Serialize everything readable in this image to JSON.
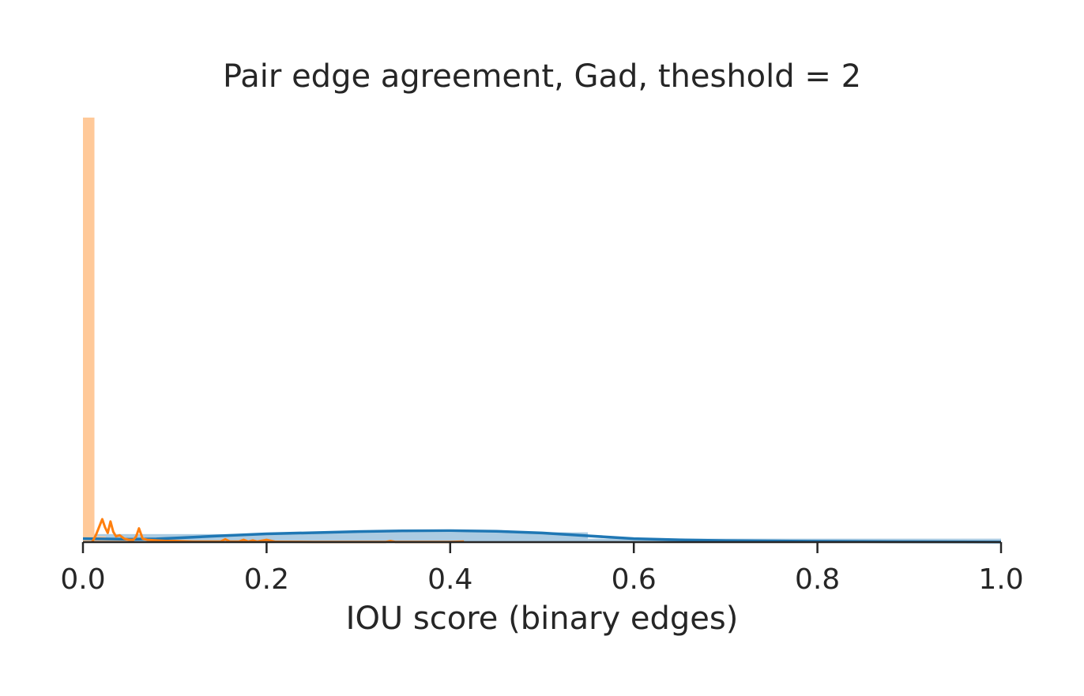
{
  "chart_data": {
    "type": "histogram",
    "title": "Pair edge agreement, Gad, theshold = 2",
    "xlabel": "IOU score (binary edges)",
    "ylabel": "",
    "xlim": [
      0.0,
      1.0
    ],
    "ylim": [
      0,
      37
    ],
    "xticks": [
      "0.0",
      "0.2",
      "0.4",
      "0.6",
      "0.8",
      "1.0"
    ],
    "grid": false,
    "legend": "none",
    "series": [
      {
        "color": "#1f77b4",
        "fill_color": "#a6c8e0",
        "hist_bins": [
          {
            "x0": 0.0,
            "x1": 0.05,
            "density": 0.7
          },
          {
            "x0": 0.05,
            "x1": 0.25,
            "density": 0.7
          },
          {
            "x0": 0.25,
            "x1": 0.55,
            "density": 0.85
          },
          {
            "x0": 0.55,
            "x1": 1.0,
            "density": 0.3
          }
        ],
        "kde_x": [
          0.0,
          0.02,
          0.05,
          0.08,
          0.1,
          0.15,
          0.2,
          0.25,
          0.3,
          0.35,
          0.4,
          0.45,
          0.5,
          0.55,
          0.6,
          0.65,
          0.7,
          0.8,
          0.9,
          1.0
        ],
        "kde_y": [
          0.3,
          0.28,
          0.25,
          0.28,
          0.35,
          0.55,
          0.72,
          0.82,
          0.92,
          0.98,
          1.0,
          0.95,
          0.8,
          0.55,
          0.3,
          0.2,
          0.13,
          0.07,
          0.03,
          0.01
        ]
      },
      {
        "color": "#ff7f0e",
        "fill_color": "#ffc999",
        "hist_bins": [
          {
            "x0": 0.0,
            "x1": 0.0125,
            "density": 37.0
          },
          {
            "x0": 0.0125,
            "x1": 0.025,
            "density": 0.5
          },
          {
            "x0": 0.025,
            "x1": 0.05,
            "density": 0.3
          }
        ],
        "kde_x": [
          0.01,
          0.014,
          0.018,
          0.021,
          0.024,
          0.027,
          0.03,
          0.033,
          0.036,
          0.04,
          0.045,
          0.05,
          0.055,
          0.058,
          0.061,
          0.065,
          0.07,
          0.08,
          0.09,
          0.1,
          0.11,
          0.12,
          0.13,
          0.15,
          0.155,
          0.16,
          0.17,
          0.175,
          0.18,
          0.185,
          0.19,
          0.2,
          0.21,
          0.25,
          0.3,
          0.33,
          0.335,
          0.34,
          0.4,
          0.415
        ],
        "kde_y": [
          0.0,
          0.6,
          1.4,
          2.0,
          1.3,
          0.8,
          1.8,
          0.9,
          0.5,
          0.6,
          0.3,
          0.2,
          0.2,
          0.5,
          1.2,
          0.3,
          0.2,
          0.15,
          0.1,
          0.1,
          0.08,
          0.05,
          0.05,
          0.05,
          0.25,
          0.05,
          0.05,
          0.2,
          0.05,
          0.15,
          0.05,
          0.2,
          0.03,
          0.02,
          0.02,
          0.02,
          0.1,
          0.02,
          0.02,
          0.05
        ]
      }
    ]
  }
}
